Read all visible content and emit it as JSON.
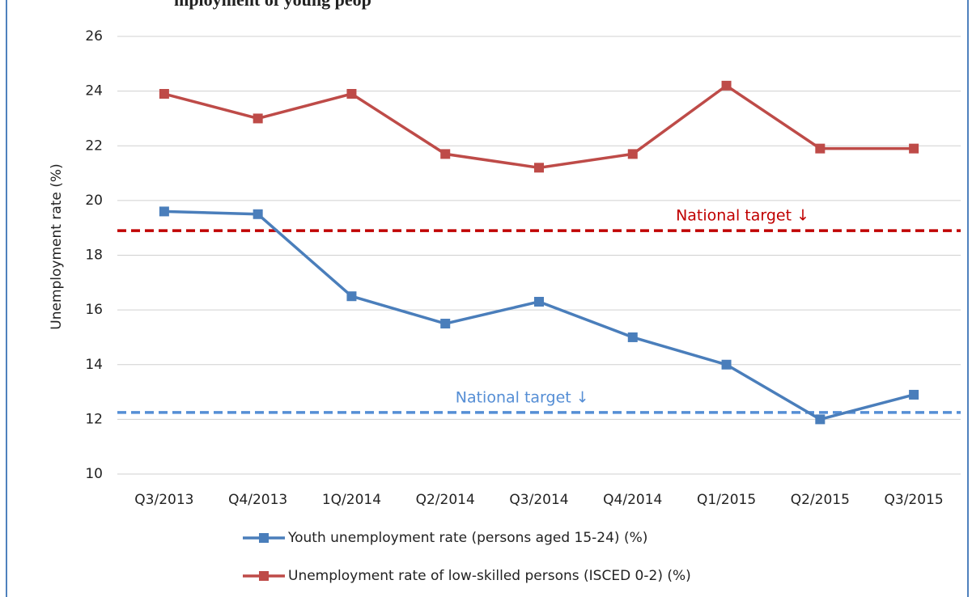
{
  "chart_data": {
    "type": "line",
    "title": "mployment of young peop",
    "y_label": "Unemployment rate (%)",
    "categories": [
      "Q3/2013",
      "Q4/2013",
      "1Q/2014",
      "Q2/2014",
      "Q3/2014",
      "Q4/2014",
      "Q1/2015",
      "Q2/2015",
      "Q3/2015"
    ],
    "series": [
      {
        "name": "Youth unemployment rate (persons aged 15-24) (%)",
        "color": "#4a7ebb",
        "values": [
          19.6,
          19.5,
          16.5,
          15.5,
          16.3,
          15.0,
          14.0,
          12.0,
          12.9
        ]
      },
      {
        "name": "Unemployment rate of low-skilled persons (ISCED 0-2) (%)",
        "color": "#be4b48",
        "values": [
          23.9,
          23.0,
          23.9,
          21.7,
          21.2,
          21.7,
          24.2,
          21.9,
          21.9
        ]
      }
    ],
    "reference_lines": [
      {
        "label": "National target ↓",
        "value": 18.9,
        "color": "#c00000"
      },
      {
        "label": "National target ↓",
        "value": 12.25,
        "color": "#558ed5"
      }
    ],
    "ylim": [
      10,
      26
    ],
    "yticks": [
      10,
      12,
      14,
      16,
      18,
      20,
      22,
      24,
      26
    ],
    "grid": true
  }
}
